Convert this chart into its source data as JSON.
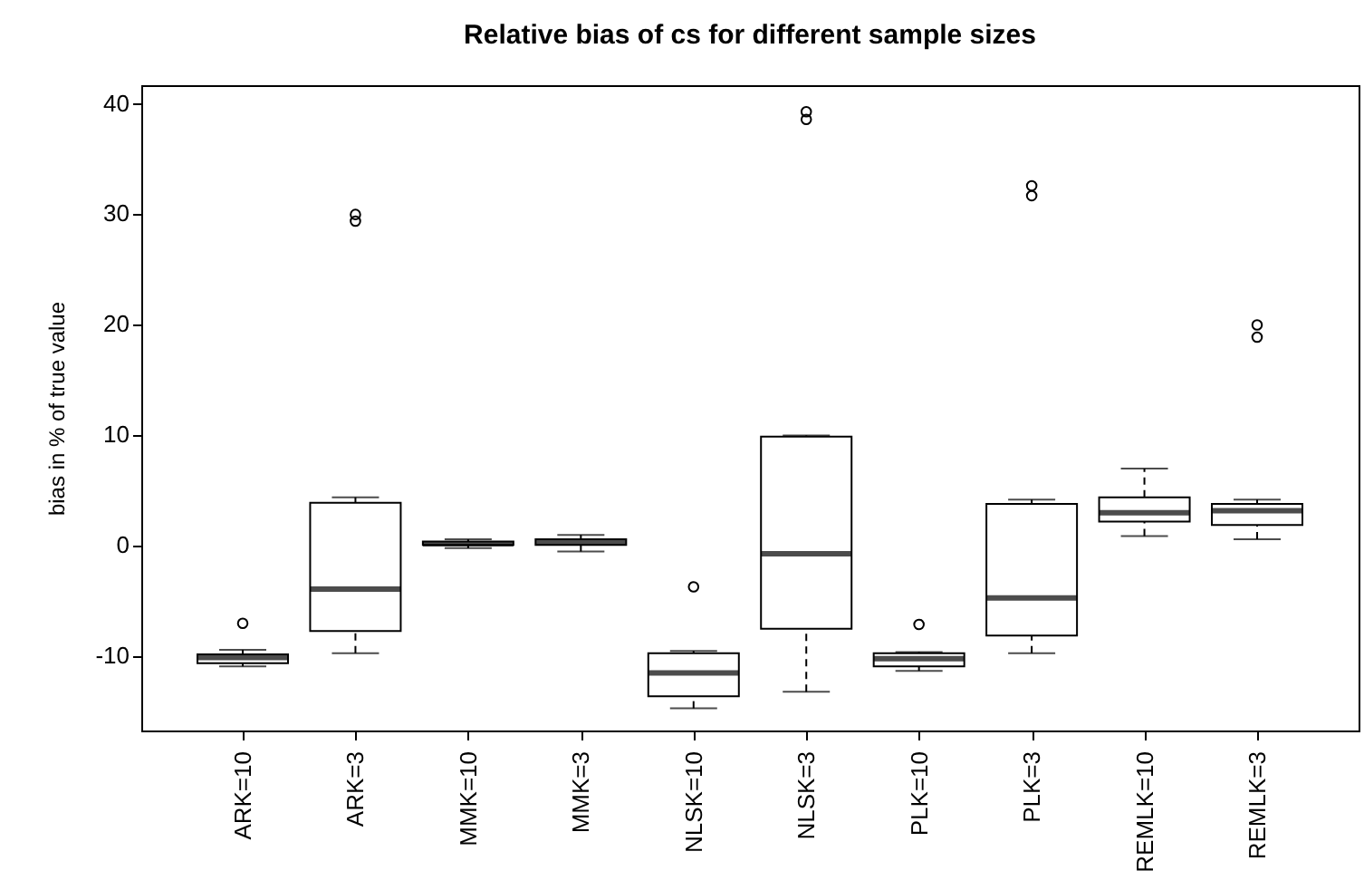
{
  "chart_data": {
    "type": "box",
    "title": "Relative bias of cs for different sample sizes",
    "ylabel": "bias in % of true value",
    "categories": [
      "ARK=10",
      "ARK=3",
      "MMK=10",
      "MMK=3",
      "NLSK=10",
      "NLSK=3",
      "PLK=10",
      "PLK=3",
      "REMLK=10",
      "REMLK=3"
    ],
    "boxes": [
      {
        "low": -11,
        "q1": -10.7,
        "median": -10.2,
        "q3": -9.9,
        "high": -9.5,
        "outliers": [
          -7.1
        ]
      },
      {
        "low": -9.8,
        "q1": -7.8,
        "median": -4,
        "q3": 3.8,
        "high": 4.3,
        "outliers": [
          29.3,
          29.9
        ]
      },
      {
        "low": -0.3,
        "q1": 0,
        "median": 0.1,
        "q3": 0.3,
        "high": 0.5
      },
      {
        "low": -0.6,
        "q1": 0,
        "median": 0.2,
        "q3": 0.5,
        "high": 0.9
      },
      {
        "low": -14.8,
        "q1": -13.7,
        "median": -11.6,
        "q3": -9.8,
        "high": -9.6,
        "outliers": [
          -3.8
        ]
      },
      {
        "low": -13.3,
        "q1": -7.6,
        "median": -0.8,
        "q3": 9.8,
        "high": 9.9,
        "outliers": [
          38.5,
          39.2
        ]
      },
      {
        "low": -11.4,
        "q1": -11,
        "median": -10.3,
        "q3": -9.8,
        "high": -9.7,
        "outliers": [
          -7.2
        ]
      },
      {
        "low": -9.8,
        "q1": -8.2,
        "median": -4.8,
        "q3": 3.7,
        "high": 4.1,
        "outliers": [
          31.6,
          32.5
        ]
      },
      {
        "low": 0.8,
        "q1": 2.1,
        "median": 2.9,
        "q3": 4.3,
        "high": 6.9
      },
      {
        "low": 0.5,
        "q1": 1.8,
        "median": 3.1,
        "q3": 3.7,
        "high": 4.1,
        "outliers": [
          18.8,
          19.9
        ]
      }
    ],
    "ylim": [
      -16.8,
      41.6
    ],
    "yticks": [
      -10,
      0,
      10,
      20,
      30,
      40
    ]
  }
}
